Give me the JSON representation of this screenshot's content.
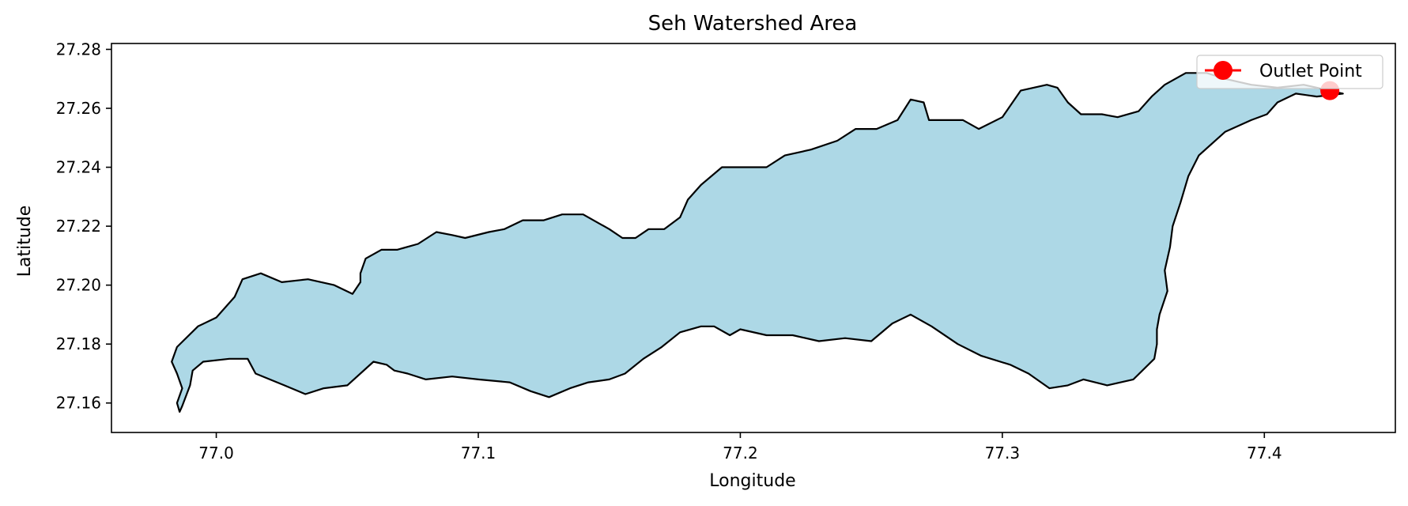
{
  "chart_data": {
    "type": "map",
    "title": "Seh Watershed Area",
    "xlabel": "Longitude",
    "ylabel": "Latitude",
    "xlim": [
      76.96,
      77.45
    ],
    "ylim": [
      27.15,
      27.282
    ],
    "xticks": [
      77.0,
      77.1,
      77.2,
      77.3,
      77.4
    ],
    "xtick_labels": [
      "77.0",
      "77.1",
      "77.2",
      "77.3",
      "77.4"
    ],
    "yticks": [
      27.16,
      27.18,
      27.2,
      27.22,
      27.24,
      27.26,
      27.28
    ],
    "ytick_labels": [
      "27.16",
      "27.18",
      "27.20",
      "27.22",
      "27.24",
      "27.26",
      "27.28"
    ],
    "grid": false,
    "legend_position": "top-right",
    "watershed": {
      "fill_color": "#add8e6",
      "edge_color": "#000000",
      "boundary": [
        [
          76.985,
          27.179
        ],
        [
          76.993,
          27.186
        ],
        [
          77.0,
          27.189
        ],
        [
          77.007,
          27.196
        ],
        [
          77.01,
          27.202
        ],
        [
          77.017,
          27.204
        ],
        [
          77.025,
          27.201
        ],
        [
          77.035,
          27.202
        ],
        [
          77.045,
          27.2
        ],
        [
          77.052,
          27.197
        ],
        [
          77.055,
          27.201
        ],
        [
          77.055,
          27.204
        ],
        [
          77.057,
          27.209
        ],
        [
          77.063,
          27.212
        ],
        [
          77.069,
          27.212
        ],
        [
          77.077,
          27.214
        ],
        [
          77.084,
          27.218
        ],
        [
          77.09,
          27.217
        ],
        [
          77.095,
          27.216
        ],
        [
          77.104,
          27.218
        ],
        [
          77.11,
          27.219
        ],
        [
          77.117,
          27.222
        ],
        [
          77.125,
          27.222
        ],
        [
          77.132,
          27.224
        ],
        [
          77.14,
          27.224
        ],
        [
          77.146,
          27.221
        ],
        [
          77.15,
          27.219
        ],
        [
          77.155,
          27.216
        ],
        [
          77.16,
          27.216
        ],
        [
          77.165,
          27.219
        ],
        [
          77.171,
          27.219
        ],
        [
          77.177,
          27.223
        ],
        [
          77.18,
          27.229
        ],
        [
          77.185,
          27.234
        ],
        [
          77.193,
          27.24
        ],
        [
          77.2,
          27.24
        ],
        [
          77.21,
          27.24
        ],
        [
          77.217,
          27.244
        ],
        [
          77.227,
          27.246
        ],
        [
          77.237,
          27.249
        ],
        [
          77.244,
          27.253
        ],
        [
          77.252,
          27.253
        ],
        [
          77.26,
          27.256
        ],
        [
          77.265,
          27.263
        ],
        [
          77.27,
          27.262
        ],
        [
          77.272,
          27.256
        ],
        [
          77.285,
          27.256
        ],
        [
          77.291,
          27.253
        ],
        [
          77.3,
          27.257
        ],
        [
          77.307,
          27.266
        ],
        [
          77.317,
          27.268
        ],
        [
          77.321,
          27.267
        ],
        [
          77.325,
          27.262
        ],
        [
          77.33,
          27.258
        ],
        [
          77.338,
          27.258
        ],
        [
          77.344,
          27.257
        ],
        [
          77.352,
          27.259
        ],
        [
          77.357,
          27.264
        ],
        [
          77.362,
          27.268
        ],
        [
          77.37,
          27.272
        ],
        [
          77.378,
          27.272
        ],
        [
          77.385,
          27.27
        ],
        [
          77.395,
          27.268
        ],
        [
          77.405,
          27.267
        ],
        [
          77.415,
          27.268
        ],
        [
          77.425,
          27.266
        ],
        [
          77.43,
          27.265
        ],
        [
          77.42,
          27.264
        ],
        [
          77.412,
          27.265
        ],
        [
          77.405,
          27.262
        ],
        [
          77.401,
          27.258
        ],
        [
          77.395,
          27.256
        ],
        [
          77.385,
          27.252
        ],
        [
          77.375,
          27.244
        ],
        [
          77.371,
          27.237
        ],
        [
          77.368,
          27.228
        ],
        [
          77.365,
          27.22
        ],
        [
          77.364,
          27.213
        ],
        [
          77.362,
          27.205
        ],
        [
          77.363,
          27.198
        ],
        [
          77.36,
          27.19
        ],
        [
          77.359,
          27.185
        ],
        [
          77.359,
          27.18
        ],
        [
          77.358,
          27.175
        ],
        [
          77.35,
          27.168
        ],
        [
          77.34,
          27.166
        ],
        [
          77.331,
          27.168
        ],
        [
          77.325,
          27.166
        ],
        [
          77.318,
          27.165
        ],
        [
          77.31,
          27.17
        ],
        [
          77.303,
          27.173
        ],
        [
          77.292,
          27.176
        ],
        [
          77.283,
          27.18
        ],
        [
          77.273,
          27.186
        ],
        [
          77.265,
          27.19
        ],
        [
          77.258,
          27.187
        ],
        [
          77.25,
          27.181
        ],
        [
          77.24,
          27.182
        ],
        [
          77.23,
          27.181
        ],
        [
          77.22,
          27.183
        ],
        [
          77.21,
          27.183
        ],
        [
          77.2,
          27.185
        ],
        [
          77.196,
          27.183
        ],
        [
          77.19,
          27.186
        ],
        [
          77.185,
          27.186
        ],
        [
          77.177,
          27.184
        ],
        [
          77.17,
          27.179
        ],
        [
          77.163,
          27.175
        ],
        [
          77.156,
          27.17
        ],
        [
          77.15,
          27.168
        ],
        [
          77.142,
          27.167
        ],
        [
          77.135,
          27.165
        ],
        [
          77.127,
          27.162
        ],
        [
          77.12,
          27.164
        ],
        [
          77.112,
          27.167
        ],
        [
          77.1,
          27.168
        ],
        [
          77.09,
          27.169
        ],
        [
          77.08,
          27.168
        ],
        [
          77.073,
          27.17
        ],
        [
          77.068,
          27.171
        ],
        [
          77.065,
          27.173
        ],
        [
          77.06,
          27.174
        ],
        [
          77.05,
          27.166
        ],
        [
          77.041,
          27.165
        ],
        [
          77.034,
          27.163
        ],
        [
          77.026,
          27.166
        ],
        [
          77.015,
          27.17
        ],
        [
          77.012,
          27.175
        ],
        [
          77.005,
          27.175
        ],
        [
          76.995,
          27.174
        ],
        [
          76.991,
          27.171
        ],
        [
          76.99,
          27.166
        ],
        [
          76.987,
          27.159
        ],
        [
          76.986,
          27.157
        ],
        [
          76.985,
          27.16
        ],
        [
          76.987,
          27.165
        ],
        [
          76.985,
          27.17
        ],
        [
          76.983,
          27.174
        ]
      ]
    },
    "series": [
      {
        "name": "Outlet Point",
        "color": "#ff0000",
        "x": [
          77.425
        ],
        "y": [
          27.266
        ]
      }
    ]
  }
}
